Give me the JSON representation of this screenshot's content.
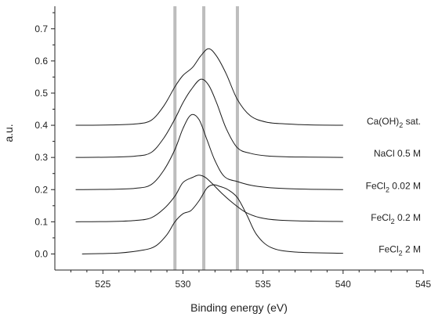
{
  "chart_data": {
    "type": "line",
    "xlabel": "Binding energy (eV)",
    "ylabel": "a.u.",
    "xlim": [
      522,
      545
    ],
    "ylim": [
      -0.05,
      0.77
    ],
    "x_ticks": [
      525,
      530,
      535,
      540,
      545
    ],
    "y_ticks": [
      0.0,
      0.1,
      0.2,
      0.3,
      0.4,
      0.5,
      0.6,
      0.7
    ],
    "x_tick_labels": [
      "525",
      "530",
      "535",
      "540",
      "545"
    ],
    "y_tick_labels": [
      "0.0",
      "0.1",
      "0.2",
      "0.3",
      "0.4",
      "0.5",
      "0.6",
      "0.7"
    ],
    "vertical_lines": [
      529.5,
      531.3,
      533.4
    ],
    "grid": false,
    "legend": "labels placed at right end of each curve",
    "series": [
      {
        "label_main": "FeCl",
        "label_sub": "2",
        "label_rest": " 2 M",
        "x": [
          523.7,
          526,
          527.5,
          528.3,
          529,
          529.5,
          530,
          530.5,
          531,
          531.5,
          531.9,
          532.3,
          532.8,
          533.4,
          534,
          534.6,
          535.5,
          537,
          540
        ],
        "y": [
          0.0,
          0.003,
          0.012,
          0.025,
          0.06,
          0.1,
          0.125,
          0.135,
          0.165,
          0.205,
          0.215,
          0.21,
          0.2,
          0.175,
          0.12,
          0.06,
          0.02,
          0.006,
          0.002
        ]
      },
      {
        "label_main": "FeCl",
        "label_sub": "2",
        "label_rest": " 0.2 M",
        "x": [
          523.3,
          525.5,
          527,
          528,
          528.8,
          529.5,
          530,
          530.6,
          531,
          531.4,
          531.8,
          532.5,
          533.2,
          533.9,
          534.8,
          536,
          538,
          540
        ],
        "y": [
          0.1,
          0.101,
          0.104,
          0.112,
          0.14,
          0.18,
          0.222,
          0.238,
          0.245,
          0.238,
          0.22,
          0.185,
          0.155,
          0.13,
          0.113,
          0.105,
          0.102,
          0.101
        ]
      },
      {
        "label_main": "FeCl",
        "label_sub": "2",
        "label_rest": " 0.02 M",
        "x": [
          523.3,
          525.5,
          527,
          528,
          528.8,
          529.5,
          530,
          530.5,
          531,
          531.5,
          532,
          532.6,
          533.4,
          534.2,
          535.2,
          536.5,
          538,
          540
        ],
        "y": [
          0.2,
          0.201,
          0.204,
          0.215,
          0.26,
          0.325,
          0.39,
          0.432,
          0.418,
          0.355,
          0.29,
          0.24,
          0.225,
          0.214,
          0.207,
          0.203,
          0.201,
          0.2
        ]
      },
      {
        "label_main": "NaCl 0.5 M",
        "label_sub": "",
        "label_rest": "",
        "x": [
          523.3,
          525.5,
          527,
          528,
          528.8,
          529.5,
          530,
          530.5,
          531.1,
          531.6,
          532.1,
          532.7,
          533.4,
          534.2,
          535.2,
          536.5,
          538,
          540
        ],
        "y": [
          0.3,
          0.301,
          0.304,
          0.315,
          0.36,
          0.42,
          0.47,
          0.51,
          0.543,
          0.525,
          0.47,
          0.39,
          0.33,
          0.313,
          0.305,
          0.302,
          0.301,
          0.3
        ]
      },
      {
        "label_main": "Ca(OH)",
        "label_sub": "2",
        "label_rest": " sat.",
        "x": [
          523.3,
          525.5,
          527,
          528,
          528.8,
          529.5,
          530,
          530.6,
          531.1,
          531.6,
          532.1,
          532.7,
          533.4,
          534.2,
          535.2,
          536.5,
          538,
          540
        ],
        "y": [
          0.4,
          0.401,
          0.404,
          0.415,
          0.46,
          0.52,
          0.555,
          0.58,
          0.615,
          0.638,
          0.615,
          0.56,
          0.48,
          0.43,
          0.41,
          0.404,
          0.401,
          0.4
        ]
      }
    ]
  }
}
